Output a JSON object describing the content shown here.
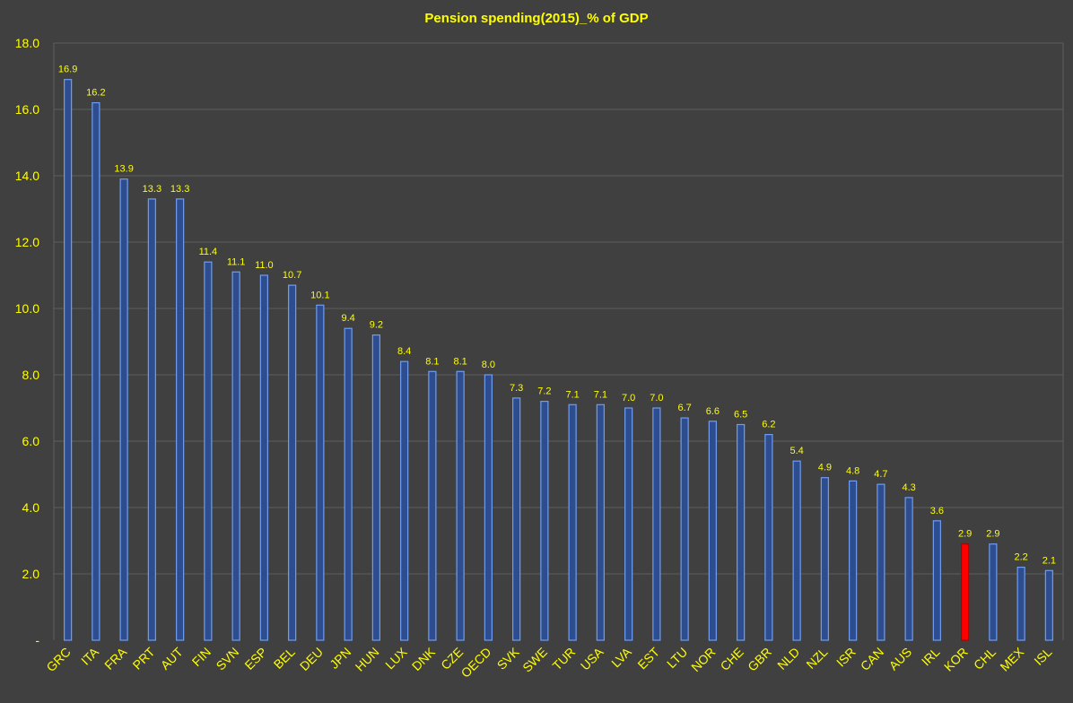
{
  "chart_data": {
    "type": "bar",
    "title": "Pension spending(2015)_% of GDP",
    "xlabel": "",
    "ylabel": "",
    "ylim": [
      0,
      18
    ],
    "yticks": [
      0,
      2,
      4,
      6,
      8,
      10,
      12,
      14,
      16,
      18
    ],
    "ytick_labels": [
      "-",
      "2.0",
      "4.0",
      "6.0",
      "8.0",
      "10.0",
      "12.0",
      "14.0",
      "16.0",
      "18.0"
    ],
    "grid": true,
    "categories": [
      "GRC",
      "ITA",
      "FRA",
      "PRT",
      "AUT",
      "FIN",
      "SVN",
      "ESP",
      "BEL",
      "DEU",
      "JPN",
      "HUN",
      "LUX",
      "DNK",
      "CZE",
      "OECD",
      "SVK",
      "SWE",
      "TUR",
      "USA",
      "LVA",
      "EST",
      "LTU",
      "NOR",
      "CHE",
      "GBR",
      "NLD",
      "NZL",
      "ISR",
      "CAN",
      "AUS",
      "IRL",
      "KOR",
      "CHL",
      "MEX",
      "ISL"
    ],
    "values": [
      16.9,
      16.2,
      13.9,
      13.3,
      13.3,
      11.4,
      11.1,
      11.0,
      10.7,
      10.1,
      9.4,
      9.2,
      8.4,
      8.1,
      8.1,
      8.0,
      7.3,
      7.2,
      7.1,
      7.1,
      7.0,
      7.0,
      6.7,
      6.6,
      6.5,
      6.2,
      5.4,
      4.9,
      4.8,
      4.7,
      4.3,
      3.6,
      2.9,
      2.9,
      2.2,
      2.1
    ],
    "data_labels": [
      "16.9",
      "16.2",
      "13.9",
      "13.3",
      "13.3",
      "11.4",
      "11.1",
      "11.0",
      "10.7",
      "10.1",
      "9.4",
      "9.2",
      "8.4",
      "8.1",
      "8.1",
      "8.0",
      "7.3",
      "7.2",
      "7.1",
      "7.1",
      "7.0",
      "7.0",
      "6.7",
      "6.6",
      "6.5",
      "6.2",
      "5.4",
      "4.9",
      "4.8",
      "4.7",
      "4.3",
      "3.6",
      "2.9",
      "2.9",
      "2.2",
      "2.1"
    ],
    "highlight_category": "KOR"
  },
  "colors": {
    "background": "#404040",
    "grid": "#5e5e5e",
    "bar_fill": "#2e4d8f",
    "bar_stroke": "#6f9df0",
    "highlight_fill": "#ff0000",
    "highlight_stroke": "#b00000",
    "text": "#ffff00"
  }
}
